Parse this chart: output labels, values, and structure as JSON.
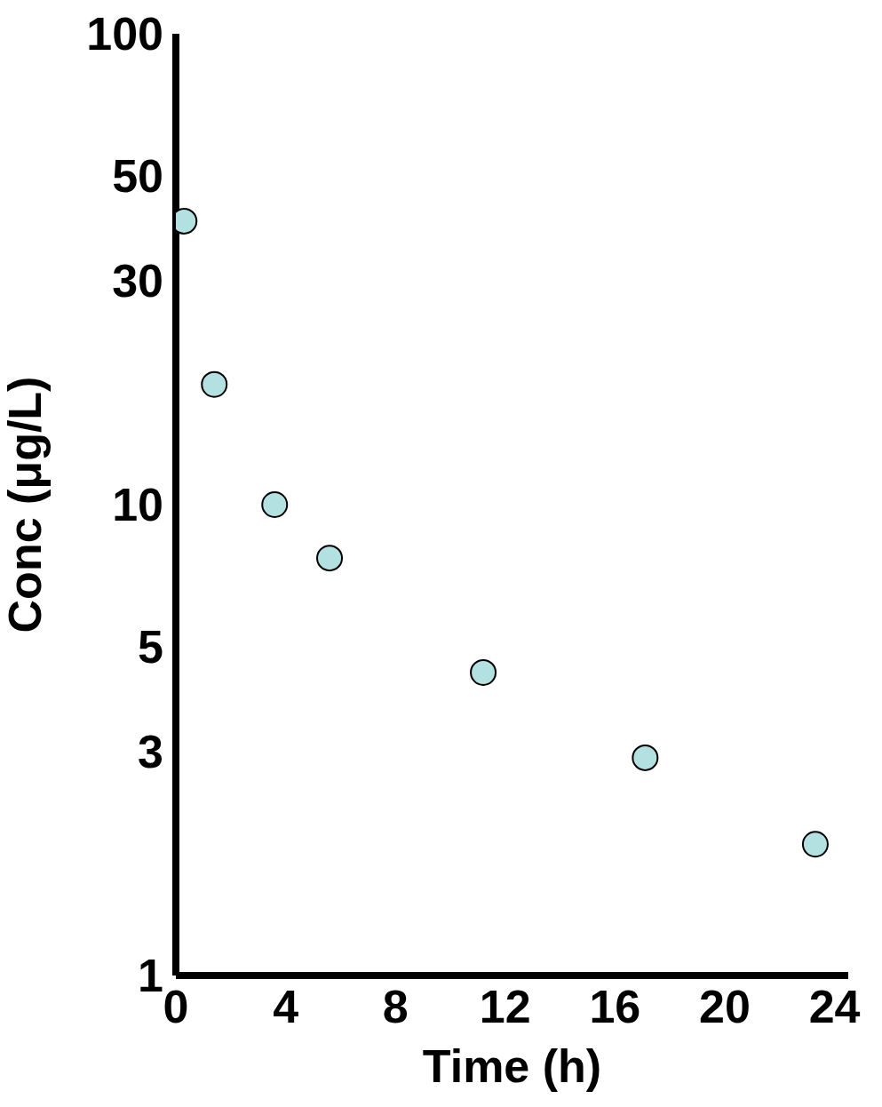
{
  "chart_data": {
    "type": "scatter",
    "xlabel": "Time (h)",
    "ylabel": "Conc (μg/L)",
    "x": [
      0.3,
      1.4,
      3.6,
      5.6,
      11.2,
      17.1,
      23.3
    ],
    "values": [
      40,
      18,
      10,
      7.7,
      4.4,
      2.9,
      1.9
    ],
    "color": "#b3e0e0",
    "marker": "circle",
    "log": "y",
    "xlim": [
      0,
      24.5
    ],
    "xticks": [
      0,
      4,
      8,
      12,
      16,
      20,
      24
    ],
    "ylim": [
      1,
      100
    ],
    "yticks": [
      1,
      3,
      5,
      10,
      30,
      50,
      100
    ]
  }
}
